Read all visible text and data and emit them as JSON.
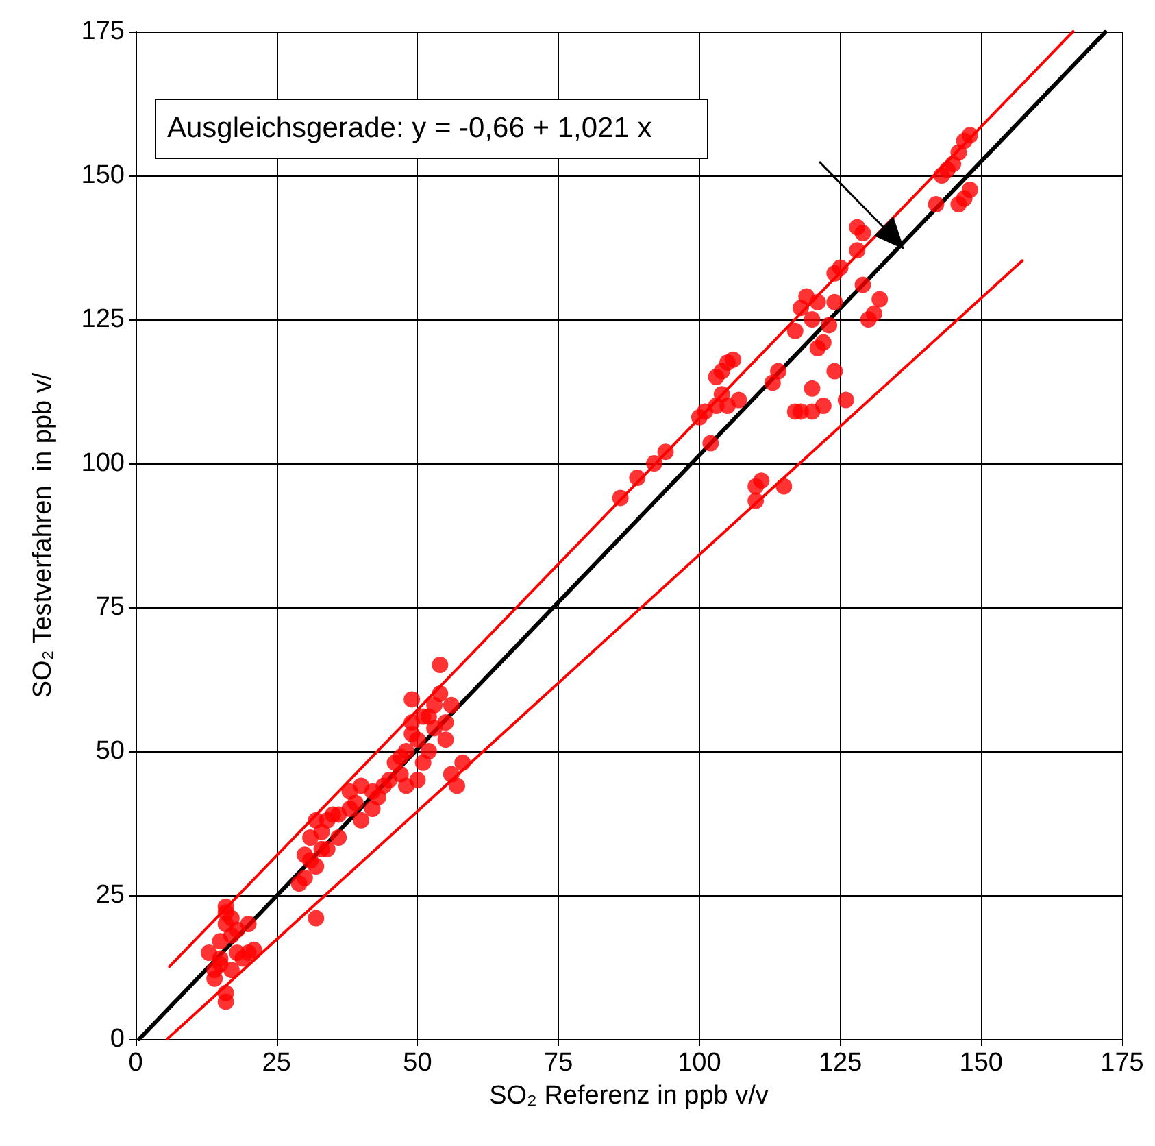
{
  "chart_data": {
    "type": "scatter",
    "xlabel": "SO₂ Referenz in ppb v/v",
    "ylabel": "SO₂ Testverfahren  in ppb v/",
    "annotations": [
      "Ausgleichsgerade: y = -0,66 + 1,021 x"
    ],
    "xlim": [
      0,
      175
    ],
    "ylim": [
      0,
      175
    ],
    "xticks": [
      0,
      25,
      50,
      75,
      100,
      125,
      150,
      175
    ],
    "yticks": [
      0,
      25,
      50,
      75,
      100,
      125,
      150,
      175
    ],
    "grid": true,
    "series": [
      {
        "type": "line",
        "marker": "none",
        "color": "#ff0000",
        "x": [
          6,
          166.3
        ],
        "values": [
          12.6,
          175
        ]
      },
      {
        "type": "line",
        "marker": "none",
        "color": "#ff0000",
        "x": [
          5.6,
          157.3
        ],
        "values": [
          0,
          135.2
        ]
      },
      {
        "type": "line",
        "marker": "none",
        "color": "#000000",
        "x": [
          0.65,
          172
        ],
        "values": [
          0,
          174.9
        ]
      },
      {
        "marker": "circle",
        "color": "#ff0000",
        "x": [
          13,
          14,
          14,
          15,
          15,
          16,
          16,
          16,
          17,
          16,
          16,
          17,
          18,
          19,
          20,
          20,
          21,
          17,
          15,
          18,
          29,
          30,
          30,
          31,
          32,
          32,
          32,
          33,
          33,
          34,
          35,
          36,
          38,
          38,
          40,
          40,
          42,
          43,
          44,
          45,
          46,
          47,
          48,
          48,
          49,
          49,
          50,
          50,
          51,
          52,
          52,
          53,
          53,
          54,
          54,
          55,
          55,
          56,
          57,
          58,
          56,
          51,
          49,
          47,
          42,
          39,
          36,
          34,
          31,
          86,
          89,
          92,
          94,
          100,
          101,
          102,
          103,
          103,
          104,
          105,
          106,
          107,
          105,
          104,
          110,
          110,
          111,
          115,
          113,
          114,
          117,
          118,
          119,
          120,
          121,
          121,
          122,
          123,
          124,
          124,
          125,
          124,
          120,
          118,
          120,
          122,
          126,
          117,
          128,
          128,
          129,
          129,
          130,
          131,
          132,
          142,
          143,
          144,
          146,
          147,
          148,
          146,
          147,
          148,
          145
        ],
        "values": [
          15,
          12,
          10.5,
          14,
          17,
          20,
          22,
          23,
          21,
          8,
          6.5,
          12,
          15,
          14,
          15,
          20,
          15.5,
          18,
          13,
          19,
          27,
          28,
          32,
          35,
          38,
          30,
          21,
          36,
          33,
          38,
          39,
          39,
          40,
          43,
          44,
          38,
          40,
          42,
          44,
          45,
          48,
          46,
          50,
          44,
          55,
          59,
          52,
          45,
          48,
          50,
          56,
          54,
          58,
          65,
          60,
          55,
          52,
          46,
          44,
          48,
          58,
          56,
          53,
          49,
          43,
          41,
          35,
          33,
          31,
          94,
          97.5,
          100,
          102,
          108,
          109,
          103.5,
          110,
          115,
          116,
          117.5,
          118,
          111,
          110,
          112,
          93.5,
          96,
          97,
          96,
          114,
          116,
          123,
          127,
          129,
          125,
          128,
          120,
          121,
          124,
          128,
          133,
          134,
          116,
          113,
          109,
          109,
          110,
          111,
          109,
          137,
          141,
          140,
          131,
          125,
          126,
          128.5,
          145,
          150,
          151,
          154,
          156,
          157,
          145,
          146,
          147.5,
          152
        ]
      }
    ]
  }
}
